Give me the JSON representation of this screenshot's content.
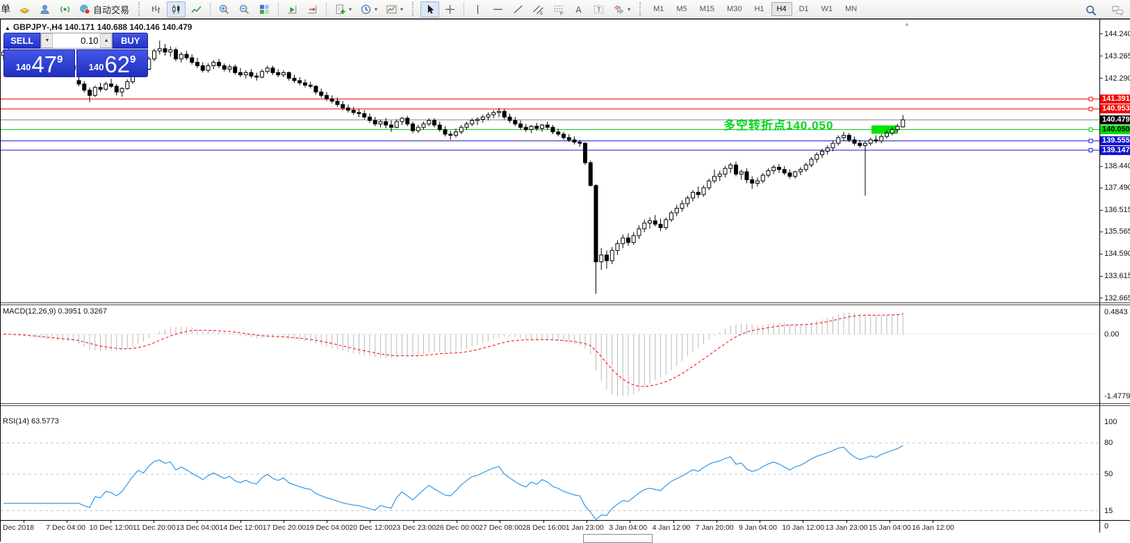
{
  "toolbar": {
    "new_order_partial": "单",
    "auto_trading_label": "自动交易",
    "groups": [
      {
        "items": [
          {
            "name": "new-order-button",
            "text_key": "new_order_partial"
          },
          {
            "name": "history-book-icon"
          },
          {
            "name": "profile-icon"
          },
          {
            "name": "signal-icon"
          },
          {
            "name": "auto-trading-button",
            "icon": "auto-trading-icon",
            "label_key": "auto_trading_label"
          }
        ]
      },
      {
        "grip": true,
        "items": [
          {
            "name": "bars-chart-icon"
          },
          {
            "name": "candles-chart-icon",
            "active": true
          },
          {
            "name": "line-chart-icon"
          }
        ]
      },
      {
        "sep": true,
        "items": [
          {
            "name": "zoom-in-icon"
          },
          {
            "name": "zoom-out-icon"
          },
          {
            "name": "tile-windows-icon"
          }
        ]
      },
      {
        "sep": true,
        "items": [
          {
            "name": "auto-scroll-icon"
          },
          {
            "name": "chart-shift-icon"
          }
        ]
      },
      {
        "sep": true,
        "items": [
          {
            "name": "indicators-icon",
            "caret": true
          },
          {
            "name": "periods-icon",
            "caret": true
          },
          {
            "name": "templates-icon",
            "caret": true
          }
        ]
      },
      {
        "grip": true,
        "items": [
          {
            "name": "cursor-icon",
            "active": true
          },
          {
            "name": "crosshair-icon"
          }
        ]
      },
      {
        "sep": true,
        "items": [
          {
            "name": "vertical-line-icon"
          },
          {
            "name": "horizontal-line-icon"
          },
          {
            "name": "trendline-icon"
          },
          {
            "name": "channel-icon"
          },
          {
            "name": "fibonacci-icon"
          },
          {
            "name": "text-icon"
          },
          {
            "name": "label-icon"
          },
          {
            "name": "shapes-icon",
            "caret": true
          }
        ]
      },
      {
        "grip": true,
        "timeframes": true
      }
    ],
    "timeframes": [
      "M1",
      "M5",
      "M15",
      "M30",
      "H1",
      "H4",
      "D1",
      "W1",
      "MN"
    ],
    "active_timeframe": "H4",
    "right_icons": [
      "search-icon",
      "chat-icon"
    ]
  },
  "chart_title": {
    "collapse": "▲",
    "text": "GBPJPY-,H4  140.171 140.688 140.146 140.479"
  },
  "trade_panel": {
    "sell_label": "SELL",
    "buy_label": "BUY",
    "volume": "0.10",
    "spin_down": "▼",
    "spin_up": "▲",
    "sell_price": {
      "prefix": "140",
      "big": "47",
      "sup": "9"
    },
    "buy_price": {
      "prefix": "140",
      "big": "62",
      "sup": "9"
    }
  },
  "end_marker": "▲",
  "chart_data": {
    "type": "candlestick",
    "symbol": "GBPJPY-",
    "timeframe": "H4",
    "ohlc_display": {
      "open": "140.171",
      "high": "140.688",
      "low": "140.146",
      "close": "140.479"
    },
    "ylim": [
      132.47,
      144.88
    ],
    "y_ticks": [
      144.24,
      143.265,
      142.29,
      138.44,
      137.49,
      136.515,
      135.565,
      134.59,
      133.615,
      132.665
    ],
    "hlines": [
      {
        "price": 141.391,
        "line_color": "#f40000",
        "label_bg": "#f40000",
        "label_color": "#ffffff",
        "marker": true
      },
      {
        "price": 140.953,
        "line_color": "#f40000",
        "label_bg": "#f40000",
        "label_color": "#ffffff",
        "marker": true
      },
      {
        "price": 140.479,
        "line_color": "#8a8a8a",
        "label_bg": "#000000",
        "label_color": "#ffffff",
        "marker": false
      },
      {
        "price": 140.05,
        "line_color": "#00c800",
        "label_bg": "#00dd00",
        "label_color": "#000000",
        "marker": true
      },
      {
        "price": 139.555,
        "line_color": "#1414d2",
        "label_bg": "#1414d2",
        "label_color": "#ffffff",
        "marker": true
      },
      {
        "price": 139.147,
        "line_color": "#1414d2",
        "label_bg": "#1414d2",
        "label_color": "#ffffff",
        "marker": true
      }
    ],
    "annotation": {
      "text": "多空转折点140.050",
      "price": 140.05,
      "color": "#00d91f"
    },
    "highlight_box": {
      "price": 140.05,
      "color": "#00e400"
    },
    "x_labels": [
      "Dec 2018",
      "7 Dec 04:00",
      "10 Dec 12:00",
      "11 Dec 20:00",
      "13 Dec 04:00",
      "14 Dec 12:00",
      "17 Dec 20:00",
      "19 Dec 04:00",
      "20 Dec 12:00",
      "23 Dec 23:00",
      "26 Dec 00:00",
      "27 Dec 08:00",
      "28 Dec 16:00",
      "1 Jan 23:00",
      "3 Jan 04:00",
      "4 Jan 12:00",
      "7 Jan 20:00",
      "9 Jan 04:00",
      "10 Jan 12:00",
      "13 Jan 23:00",
      "15 Jan 04:00",
      "16 Jan 12:00"
    ],
    "candles": [
      [
        143.3,
        143.55,
        143.1,
        143.45
      ],
      [
        143.45,
        143.7,
        143.25,
        143.35
      ],
      [
        143.35,
        143.5,
        143.05,
        143.15
      ],
      [
        143.15,
        143.4,
        142.95,
        143.3
      ],
      [
        143.3,
        143.45,
        143.0,
        143.1
      ],
      [
        143.1,
        143.25,
        142.85,
        142.95
      ],
      [
        142.95,
        143.2,
        142.8,
        143.1
      ],
      [
        143.1,
        143.3,
        142.9,
        143.0
      ],
      [
        143.0,
        143.15,
        142.75,
        142.85
      ],
      [
        142.85,
        143.05,
        142.65,
        142.95
      ],
      [
        142.95,
        143.1,
        142.7,
        142.8
      ],
      [
        142.8,
        142.95,
        142.6,
        142.7
      ],
      [
        142.7,
        142.95,
        142.58,
        142.85
      ],
      [
        142.85,
        143.0,
        142.6,
        142.68
      ],
      [
        142.2,
        142.42,
        141.95,
        142.05
      ],
      [
        142.05,
        142.18,
        141.68,
        141.78
      ],
      [
        141.78,
        141.9,
        141.25,
        141.55
      ],
      [
        141.55,
        141.98,
        141.48,
        141.9
      ],
      [
        141.9,
        142.1,
        141.7,
        141.82
      ],
      [
        141.82,
        142.15,
        141.75,
        142.05
      ],
      [
        142.05,
        142.28,
        141.88,
        141.95
      ],
      [
        141.95,
        142.05,
        141.55,
        141.7
      ],
      [
        141.7,
        141.92,
        141.5,
        141.85
      ],
      [
        141.85,
        142.25,
        141.8,
        142.15
      ],
      [
        142.15,
        142.6,
        142.05,
        142.5
      ],
      [
        142.5,
        142.95,
        142.4,
        142.85
      ],
      [
        142.85,
        143.1,
        142.6,
        142.7
      ],
      [
        142.7,
        143.25,
        142.65,
        143.15
      ],
      [
        143.15,
        143.6,
        143.05,
        143.5
      ],
      [
        143.5,
        143.95,
        143.35,
        143.6
      ],
      [
        143.6,
        143.8,
        143.3,
        143.45
      ],
      [
        143.45,
        143.7,
        143.25,
        143.55
      ],
      [
        143.55,
        143.65,
        143.05,
        143.15
      ],
      [
        143.15,
        143.45,
        143.0,
        143.35
      ],
      [
        143.35,
        143.5,
        143.1,
        143.2
      ],
      [
        143.2,
        143.35,
        142.9,
        143.0
      ],
      [
        143.0,
        143.2,
        142.75,
        142.85
      ],
      [
        142.85,
        143.0,
        142.55,
        142.65
      ],
      [
        142.65,
        142.95,
        142.55,
        142.85
      ],
      [
        142.85,
        143.1,
        142.7,
        143.0
      ],
      [
        143.0,
        143.15,
        142.75,
        142.85
      ],
      [
        142.85,
        142.95,
        142.6,
        142.7
      ],
      [
        142.7,
        142.9,
        142.55,
        142.8
      ],
      [
        142.8,
        142.9,
        142.45,
        142.55
      ],
      [
        142.55,
        142.75,
        142.35,
        142.45
      ],
      [
        142.45,
        142.65,
        142.3,
        142.55
      ],
      [
        142.55,
        142.7,
        142.3,
        142.4
      ],
      [
        142.4,
        142.55,
        142.2,
        142.35
      ],
      [
        142.35,
        142.7,
        142.3,
        142.6
      ],
      [
        142.6,
        142.85,
        142.5,
        142.75
      ],
      [
        142.75,
        142.85,
        142.45,
        142.55
      ],
      [
        142.55,
        142.7,
        142.35,
        142.45
      ],
      [
        142.45,
        142.65,
        142.35,
        142.55
      ],
      [
        142.55,
        142.6,
        142.2,
        142.3
      ],
      [
        142.3,
        142.45,
        142.1,
        142.2
      ],
      [
        142.2,
        142.35,
        142.0,
        142.1
      ],
      [
        142.1,
        142.25,
        141.9,
        142.0
      ],
      [
        142.0,
        142.15,
        141.85,
        141.95
      ],
      [
        141.95,
        142.0,
        141.6,
        141.7
      ],
      [
        141.7,
        141.85,
        141.45,
        141.55
      ],
      [
        141.55,
        141.7,
        141.3,
        141.4
      ],
      [
        141.4,
        141.55,
        141.2,
        141.3
      ],
      [
        141.3,
        141.45,
        141.05,
        141.15
      ],
      [
        141.15,
        141.3,
        140.9,
        141.0
      ],
      [
        141.0,
        141.15,
        140.8,
        140.9
      ],
      [
        140.9,
        141.05,
        140.7,
        140.8
      ],
      [
        140.8,
        140.95,
        140.6,
        140.75
      ],
      [
        140.75,
        140.9,
        140.5,
        140.6
      ],
      [
        140.6,
        140.75,
        140.35,
        140.45
      ],
      [
        140.45,
        140.6,
        140.2,
        140.3
      ],
      [
        140.3,
        140.5,
        140.15,
        140.4
      ],
      [
        140.4,
        140.55,
        140.1,
        140.25
      ],
      [
        140.25,
        140.45,
        139.95,
        140.15
      ],
      [
        140.15,
        140.5,
        140.1,
        140.4
      ],
      [
        140.4,
        140.6,
        140.25,
        140.55
      ],
      [
        140.55,
        140.65,
        140.2,
        140.3
      ],
      [
        140.3,
        140.4,
        139.9,
        140.0
      ],
      [
        140.0,
        140.25,
        139.9,
        140.15
      ],
      [
        140.15,
        140.4,
        140.05,
        140.3
      ],
      [
        140.3,
        140.55,
        140.2,
        140.45
      ],
      [
        140.45,
        140.55,
        140.15,
        140.25
      ],
      [
        140.25,
        140.4,
        139.95,
        140.05
      ],
      [
        140.05,
        140.2,
        139.75,
        139.85
      ],
      [
        139.85,
        140.0,
        139.6,
        139.8
      ],
      [
        139.8,
        140.1,
        139.7,
        139.95
      ],
      [
        139.95,
        140.25,
        139.85,
        140.15
      ],
      [
        140.15,
        140.4,
        140.05,
        140.3
      ],
      [
        140.3,
        140.55,
        140.2,
        140.45
      ],
      [
        140.45,
        140.6,
        140.25,
        140.5
      ],
      [
        140.5,
        140.7,
        140.35,
        140.6
      ],
      [
        140.6,
        140.8,
        140.45,
        140.7
      ],
      [
        140.7,
        140.9,
        140.55,
        140.8
      ],
      [
        140.8,
        141.0,
        140.6,
        140.85
      ],
      [
        140.85,
        140.95,
        140.5,
        140.6
      ],
      [
        140.6,
        140.75,
        140.35,
        140.45
      ],
      [
        140.45,
        140.6,
        140.2,
        140.3
      ],
      [
        140.3,
        140.45,
        140.05,
        140.15
      ],
      [
        140.15,
        140.3,
        139.95,
        140.05
      ],
      [
        140.05,
        140.25,
        139.9,
        140.2
      ],
      [
        140.2,
        140.35,
        140.0,
        140.1
      ],
      [
        140.1,
        140.3,
        139.95,
        140.25
      ],
      [
        140.25,
        140.4,
        140.05,
        140.15
      ],
      [
        140.15,
        140.25,
        139.85,
        139.95
      ],
      [
        139.95,
        140.1,
        139.75,
        139.85
      ],
      [
        139.85,
        139.95,
        139.6,
        139.7
      ],
      [
        139.7,
        139.85,
        139.5,
        139.6
      ],
      [
        139.6,
        139.75,
        139.4,
        139.5
      ],
      [
        139.5,
        139.6,
        139.3,
        139.45
      ],
      [
        139.45,
        139.5,
        138.5,
        138.6
      ],
      [
        138.6,
        138.7,
        137.55,
        137.6
      ],
      [
        137.6,
        137.65,
        132.85,
        134.25
      ],
      [
        134.25,
        134.85,
        133.9,
        134.55
      ],
      [
        134.55,
        134.75,
        133.95,
        134.3
      ],
      [
        134.3,
        134.9,
        134.15,
        134.75
      ],
      [
        134.75,
        135.2,
        134.55,
        135.05
      ],
      [
        135.05,
        135.45,
        134.85,
        135.3
      ],
      [
        135.3,
        135.5,
        134.95,
        135.1
      ],
      [
        135.1,
        135.55,
        135.0,
        135.4
      ],
      [
        135.4,
        135.85,
        135.25,
        135.7
      ],
      [
        135.7,
        136.1,
        135.55,
        135.95
      ],
      [
        135.95,
        136.2,
        135.7,
        136.05
      ],
      [
        136.05,
        136.3,
        135.8,
        135.9
      ],
      [
        135.9,
        136.15,
        135.6,
        135.75
      ],
      [
        135.75,
        136.2,
        135.65,
        136.1
      ],
      [
        136.1,
        136.5,
        136.0,
        136.4
      ],
      [
        136.4,
        136.75,
        136.25,
        136.6
      ],
      [
        136.6,
        136.95,
        136.45,
        136.8
      ],
      [
        136.8,
        137.15,
        136.65,
        137.05
      ],
      [
        137.05,
        137.4,
        136.9,
        137.3
      ],
      [
        137.3,
        137.55,
        137.05,
        137.2
      ],
      [
        137.2,
        137.6,
        137.1,
        137.5
      ],
      [
        137.5,
        137.9,
        137.4,
        137.8
      ],
      [
        137.8,
        138.3,
        137.7,
        138.0
      ],
      [
        138.0,
        138.25,
        137.8,
        138.1
      ],
      [
        138.1,
        138.45,
        137.95,
        138.35
      ],
      [
        138.35,
        138.6,
        138.15,
        138.5
      ],
      [
        138.5,
        138.65,
        138.0,
        138.1
      ],
      [
        138.1,
        138.3,
        137.85,
        138.2
      ],
      [
        138.2,
        138.35,
        137.7,
        137.85
      ],
      [
        137.85,
        138.0,
        137.45,
        137.7
      ],
      [
        137.7,
        137.95,
        137.55,
        137.8
      ],
      [
        137.8,
        138.15,
        137.7,
        138.05
      ],
      [
        138.05,
        138.35,
        137.95,
        138.25
      ],
      [
        138.25,
        138.5,
        138.1,
        138.4
      ],
      [
        138.4,
        138.55,
        138.15,
        138.3
      ],
      [
        138.3,
        138.45,
        138.05,
        138.15
      ],
      [
        138.15,
        138.3,
        137.9,
        138.0
      ],
      [
        138.0,
        138.25,
        137.9,
        138.2
      ],
      [
        138.2,
        138.4,
        138.05,
        138.3
      ],
      [
        138.3,
        138.6,
        138.2,
        138.5
      ],
      [
        138.5,
        138.85,
        138.4,
        138.75
      ],
      [
        138.75,
        139.05,
        138.6,
        138.95
      ],
      [
        138.95,
        139.2,
        138.8,
        139.1
      ],
      [
        139.1,
        139.35,
        138.95,
        139.25
      ],
      [
        139.25,
        139.55,
        139.1,
        139.45
      ],
      [
        139.45,
        139.8,
        139.35,
        139.7
      ],
      [
        139.7,
        139.95,
        139.55,
        139.8
      ],
      [
        139.8,
        139.9,
        139.5,
        139.6
      ],
      [
        139.6,
        139.75,
        139.35,
        139.45
      ],
      [
        139.45,
        139.6,
        139.25,
        139.35
      ],
      [
        139.35,
        139.55,
        137.15,
        139.45
      ],
      [
        139.45,
        139.7,
        139.35,
        139.6
      ],
      [
        139.6,
        139.8,
        139.45,
        139.55
      ],
      [
        139.55,
        139.85,
        139.45,
        139.75
      ],
      [
        139.75,
        140.0,
        139.65,
        139.9
      ],
      [
        139.9,
        140.15,
        139.8,
        140.05
      ],
      [
        140.05,
        140.3,
        139.95,
        140.2
      ],
      [
        140.171,
        140.688,
        140.146,
        140.479
      ]
    ],
    "indicators": [
      {
        "type": "macd",
        "label": "MACD(12,26,9)",
        "values_display": "0.3951 0.3267",
        "params": [
          12,
          26,
          9
        ],
        "axis_labels": {
          "max": "0.4843",
          "zero": "0.00",
          "min": "-1.4779"
        },
        "histogram_color": "#b8b8b8",
        "signal_color": "#ff0000"
      },
      {
        "type": "rsi",
        "label": "RSI(14)",
        "value_display": "63.5773",
        "period": 14,
        "axis_top": "100",
        "levels": [
          80,
          50,
          15
        ],
        "axis_bottom": "0",
        "line_color": "#3097e8"
      }
    ]
  }
}
